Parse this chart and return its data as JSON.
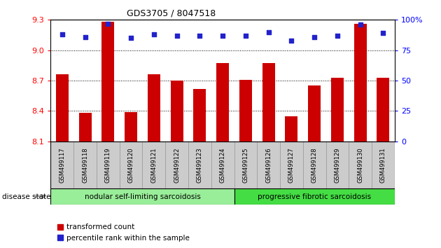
{
  "title": "GDS3705 / 8047518",
  "samples": [
    "GSM499117",
    "GSM499118",
    "GSM499119",
    "GSM499120",
    "GSM499121",
    "GSM499122",
    "GSM499123",
    "GSM499124",
    "GSM499125",
    "GSM499126",
    "GSM499127",
    "GSM499128",
    "GSM499129",
    "GSM499130",
    "GSM499131"
  ],
  "transformed_count": [
    8.76,
    8.38,
    9.28,
    8.39,
    8.76,
    8.7,
    8.62,
    8.87,
    8.71,
    8.87,
    8.35,
    8.65,
    8.73,
    9.26,
    8.73
  ],
  "percentile_rank": [
    88,
    86,
    97,
    85,
    88,
    87,
    87,
    87,
    87,
    90,
    83,
    86,
    87,
    96,
    89
  ],
  "ylim_left": [
    8.1,
    9.3
  ],
  "ylim_right": [
    0,
    100
  ],
  "yticks_left": [
    8.1,
    8.4,
    8.7,
    9.0,
    9.3
  ],
  "yticks_right": [
    0,
    25,
    50,
    75,
    100
  ],
  "bar_color": "#cc0000",
  "dot_color": "#2222cc",
  "group1_label": "nodular self-limiting sarcoidosis",
  "group2_label": "progressive fibrotic sarcoidosis",
  "group1_count": 8,
  "group2_count": 7,
  "disease_state_label": "disease state",
  "legend_bar_label": "transformed count",
  "legend_dot_label": "percentile rank within the sample",
  "group1_color": "#99ee99",
  "group2_color": "#44dd44",
  "label_bg": "#cccccc",
  "label_edge": "#999999"
}
